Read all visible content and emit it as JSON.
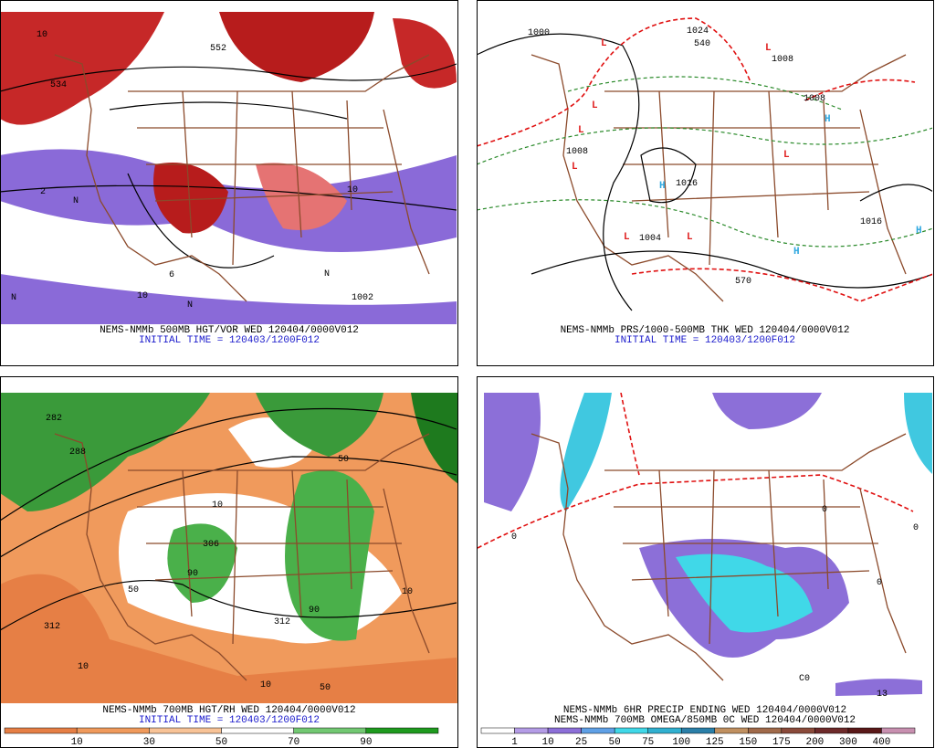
{
  "panels": [
    {
      "caption": [
        "NEMS-NMMb 500MB HGT/VOR WED 120404/0000V012",
        "INITIAL TIME = 120403/1200F012"
      ],
      "map_labels": [
        "552",
        "534",
        "10",
        "10",
        "N",
        "N",
        "N",
        "N",
        "2",
        "6",
        "1002",
        "10"
      ]
    },
    {
      "caption": [
        "NEMS-NMMb PRS/1000-500MB THK WED 120404/0000V012",
        "INITIAL TIME = 120403/1200F012"
      ],
      "map_labels": [
        "L",
        "L",
        "L",
        "L",
        "L",
        "L",
        "L",
        "L",
        "H",
        "H",
        "H",
        "H",
        "1000",
        "1024",
        "1008",
        "1008",
        "1016",
        "1016",
        "1008",
        "570",
        "540",
        "1004"
      ]
    },
    {
      "caption": [
        "NEMS-NMMb 700MB HGT/RH WED 120404/0000V012",
        "INITIAL TIME = 120403/1200F012"
      ],
      "map_labels": [
        "282",
        "288",
        "306",
        "312",
        "312",
        "90",
        "90",
        "50",
        "50",
        "10",
        "10",
        "10",
        "10",
        "50"
      ],
      "colorbar": {
        "labels": [
          "10",
          "30",
          "50",
          "70",
          "90"
        ],
        "colors": [
          "#e67f45",
          "#f09a5c",
          "#f8c397",
          "#ffffff",
          "#72c872",
          "#1e9a1e"
        ]
      }
    },
    {
      "caption": [
        "NEMS-NMMb 6HR PRECIP ENDING WED 120404/0000V012",
        "NEMS-NMMb 700MB OMEGA/850MB 0C WED 120404/0000V012"
      ],
      "map_labels": [
        "0",
        "0",
        "0",
        "0",
        "C0",
        "13"
      ],
      "colorbar": {
        "labels": [
          "1",
          "10",
          "25",
          "50",
          "75",
          "100",
          "125",
          "150",
          "175",
          "200",
          "300",
          "400"
        ],
        "colors": [
          "#ffffff",
          "#b49ce6",
          "#8c6fd8",
          "#5fa0e6",
          "#40d8e8",
          "#30b0d0",
          "#2a7fa8",
          "#c09060",
          "#a06a4a",
          "#8a4a3a",
          "#6e2a2a",
          "#5a1818",
          "#c890b0"
        ]
      }
    }
  ]
}
